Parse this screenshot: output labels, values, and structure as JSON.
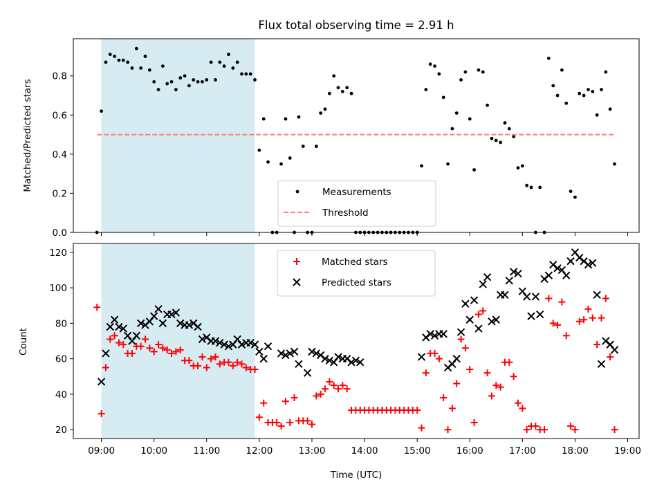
{
  "chart_data": [
    {
      "type": "scatter",
      "title": "Flux total observing time = 2.91 h",
      "xlabel": "",
      "ylabel": "Matched/Predicted stars",
      "xlim": [
        "08:28",
        "19:13"
      ],
      "ylim": [
        0,
        0.99
      ],
      "xticks": [
        "09:00",
        "10:00",
        "11:00",
        "12:00",
        "13:00",
        "14:00",
        "15:00",
        "16:00",
        "17:00",
        "18:00",
        "19:00"
      ],
      "xtick_labels_shown": false,
      "yticks": [
        "0.0",
        "0.2",
        "0.4",
        "0.6",
        "0.8"
      ],
      "highlight_span": {
        "from": "09:00",
        "to": "11:55",
        "color": "#add8e6"
      },
      "legend": {
        "placement": "lower center",
        "entries": [
          "Measurements",
          "Threshold"
        ]
      },
      "series": [
        {
          "name": "Measurements",
          "marker": "dot",
          "color": "#000000",
          "x": [
            "08:55",
            "09:00",
            "09:05",
            "09:10",
            "09:15",
            "09:20",
            "09:25",
            "09:30",
            "09:35",
            "09:40",
            "09:45",
            "09:50",
            "09:55",
            "10:00",
            "10:05",
            "10:10",
            "10:15",
            "10:20",
            "10:25",
            "10:30",
            "10:35",
            "10:40",
            "10:45",
            "10:50",
            "10:55",
            "11:00",
            "11:05",
            "11:10",
            "11:15",
            "11:20",
            "11:25",
            "11:30",
            "11:35",
            "11:40",
            "11:45",
            "11:50",
            "11:55",
            "12:00",
            "12:05",
            "12:10",
            "12:15",
            "12:20",
            "12:25",
            "12:30",
            "12:35",
            "12:40",
            "12:45",
            "12:50",
            "12:55",
            "13:00",
            "13:05",
            "13:10",
            "13:15",
            "13:20",
            "13:25",
            "13:30",
            "13:35",
            "13:40",
            "13:45",
            "13:50",
            "13:55",
            "14:00",
            "14:05",
            "14:10",
            "14:15",
            "14:20",
            "14:25",
            "14:30",
            "14:35",
            "14:40",
            "14:45",
            "14:50",
            "14:55",
            "15:00",
            "15:05",
            "15:10",
            "15:15",
            "15:20",
            "15:25",
            "15:30",
            "15:35",
            "15:40",
            "15:45",
            "15:50",
            "15:55",
            "16:00",
            "16:05",
            "16:10",
            "16:15",
            "16:20",
            "16:25",
            "16:30",
            "16:35",
            "16:40",
            "16:45",
            "16:50",
            "16:55",
            "17:00",
            "17:05",
            "17:10",
            "17:15",
            "17:20",
            "17:25",
            "17:30",
            "17:35",
            "17:40",
            "17:45",
            "17:50",
            "17:55",
            "18:00",
            "18:05",
            "18:10",
            "18:15",
            "18:20",
            "18:25",
            "18:30",
            "18:35",
            "18:40",
            "18:45"
          ],
          "y": [
            0.0,
            0.62,
            0.87,
            0.91,
            0.9,
            0.88,
            0.88,
            0.87,
            0.84,
            0.94,
            0.84,
            0.9,
            0.83,
            0.77,
            0.73,
            0.85,
            0.76,
            0.77,
            0.73,
            0.79,
            0.8,
            0.75,
            0.78,
            0.77,
            0.77,
            0.78,
            0.87,
            0.78,
            0.87,
            0.85,
            0.91,
            0.84,
            0.87,
            0.81,
            0.81,
            0.81,
            0.78,
            0.42,
            0.58,
            0.36,
            0.0,
            0.0,
            0.35,
            0.58,
            0.38,
            0.0,
            0.59,
            0.44,
            0.0,
            0.0,
            0.44,
            0.61,
            0.63,
            0.71,
            0.8,
            0.74,
            0.72,
            0.74,
            0.71,
            0.0,
            0.0,
            0.0,
            0.0,
            0.0,
            0.0,
            0.0,
            0.0,
            0.0,
            0.0,
            0.0,
            0.0,
            0.0,
            0.0,
            0.0,
            0.34,
            0.73,
            0.86,
            0.85,
            0.81,
            0.69,
            0.35,
            0.53,
            0.61,
            0.78,
            0.82,
            0.58,
            0.32,
            0.83,
            0.82,
            0.65,
            0.48,
            0.47,
            0.46,
            0.56,
            0.53,
            0.49,
            0.33,
            0.34,
            0.24,
            0.23,
            0.0,
            0.23,
            0.0,
            0.89,
            0.75,
            0.7,
            0.83,
            0.66,
            0.21,
            0.18,
            0.71,
            0.7,
            0.73,
            0.72,
            0.6,
            0.73,
            0.82,
            0.63,
            0.35
          ]
        },
        {
          "name": "Threshold",
          "style": "dashed",
          "color": "#ff7f7f",
          "x": [
            "08:55",
            "18:45"
          ],
          "y": [
            0.5,
            0.5
          ]
        }
      ]
    },
    {
      "type": "scatter",
      "title": "",
      "xlabel": "Time (UTC)",
      "ylabel": "Count",
      "xlim": [
        "08:28",
        "19:13"
      ],
      "ylim": [
        15,
        125
      ],
      "xticks": [
        "09:00",
        "10:00",
        "11:00",
        "12:00",
        "13:00",
        "14:00",
        "15:00",
        "16:00",
        "17:00",
        "18:00",
        "19:00"
      ],
      "yticks": [
        "20",
        "40",
        "60",
        "80",
        "100",
        "120"
      ],
      "highlight_span": {
        "from": "09:00",
        "to": "11:55",
        "color": "#add8e6"
      },
      "legend": {
        "placement": "upper center",
        "entries": [
          "Matched stars",
          "Predicted stars"
        ]
      },
      "series": [
        {
          "name": "Matched stars",
          "marker": "plus",
          "color": "#ff0000",
          "x": [
            "08:55",
            "09:00",
            "09:05",
            "09:10",
            "09:15",
            "09:20",
            "09:25",
            "09:30",
            "09:35",
            "09:40",
            "09:45",
            "09:50",
            "09:55",
            "10:00",
            "10:05",
            "10:10",
            "10:15",
            "10:20",
            "10:25",
            "10:30",
            "10:35",
            "10:40",
            "10:45",
            "10:50",
            "10:55",
            "11:00",
            "11:05",
            "11:10",
            "11:15",
            "11:20",
            "11:25",
            "11:30",
            "11:35",
            "11:40",
            "11:45",
            "11:50",
            "11:55",
            "12:00",
            "12:05",
            "12:10",
            "12:15",
            "12:20",
            "12:25",
            "12:30",
            "12:35",
            "12:40",
            "12:45",
            "12:50",
            "12:55",
            "13:00",
            "13:05",
            "13:10",
            "13:15",
            "13:20",
            "13:25",
            "13:30",
            "13:35",
            "13:40",
            "13:45",
            "13:50",
            "13:55",
            "14:00",
            "14:05",
            "14:10",
            "14:15",
            "14:20",
            "14:25",
            "14:30",
            "14:35",
            "14:40",
            "14:45",
            "14:50",
            "14:55",
            "15:00",
            "15:05",
            "15:10",
            "15:15",
            "15:20",
            "15:25",
            "15:30",
            "15:35",
            "15:40",
            "15:45",
            "15:50",
            "15:55",
            "16:00",
            "16:05",
            "16:10",
            "16:15",
            "16:20",
            "16:25",
            "16:30",
            "16:35",
            "16:40",
            "16:45",
            "16:50",
            "16:55",
            "17:00",
            "17:05",
            "17:10",
            "17:15",
            "17:20",
            "17:25",
            "17:30",
            "17:35",
            "17:40",
            "17:45",
            "17:50",
            "17:55",
            "18:00",
            "18:05",
            "18:10",
            "18:15",
            "18:20",
            "18:25",
            "18:30",
            "18:35",
            "18:40",
            "18:45"
          ],
          "y": [
            89,
            29,
            55,
            71,
            73,
            69,
            68,
            63,
            63,
            67,
            67,
            71,
            66,
            64,
            68,
            66,
            65,
            63,
            64,
            65,
            59,
            59,
            56,
            56,
            61,
            55,
            60,
            61,
            57,
            58,
            58,
            56,
            58,
            57,
            55,
            54,
            54,
            27,
            35,
            24,
            24,
            24,
            22,
            36,
            24,
            38,
            25,
            25,
            25,
            23,
            39,
            40,
            43,
            47,
            45,
            43,
            45,
            43,
            31,
            31,
            31,
            31,
            31,
            31,
            31,
            31,
            31,
            31,
            31,
            31,
            31,
            31,
            31,
            31,
            21,
            52,
            63,
            63,
            60,
            38,
            20,
            32,
            46,
            71,
            66,
            54,
            24,
            85,
            87,
            52,
            39,
            45,
            44,
            58,
            58,
            50,
            35,
            32,
            20,
            22,
            22,
            20,
            20,
            94,
            80,
            79,
            92,
            73,
            22,
            20,
            81,
            82,
            88,
            83,
            68,
            83,
            94,
            61,
            20
          ]
        },
        {
          "name": "Predicted stars",
          "marker": "x",
          "color": "#000000",
          "x": [
            "09:00",
            "09:05",
            "09:10",
            "09:15",
            "09:20",
            "09:25",
            "09:30",
            "09:35",
            "09:40",
            "09:45",
            "09:50",
            "09:55",
            "10:00",
            "10:05",
            "10:10",
            "10:15",
            "10:20",
            "10:25",
            "10:30",
            "10:35",
            "10:40",
            "10:45",
            "10:50",
            "10:55",
            "11:00",
            "11:05",
            "11:10",
            "11:15",
            "11:20",
            "11:25",
            "11:30",
            "11:35",
            "11:40",
            "11:45",
            "11:50",
            "11:55",
            "12:00",
            "12:05",
            "12:10",
            "12:25",
            "12:30",
            "12:35",
            "12:40",
            "12:45",
            "12:55",
            "13:00",
            "13:05",
            "13:10",
            "13:15",
            "13:20",
            "13:25",
            "13:30",
            "13:35",
            "13:40",
            "13:45",
            "13:50",
            "13:55",
            "15:05",
            "15:10",
            "15:15",
            "15:20",
            "15:25",
            "15:30",
            "15:35",
            "15:40",
            "15:45",
            "15:50",
            "15:55",
            "16:00",
            "16:05",
            "16:10",
            "16:15",
            "16:20",
            "16:25",
            "16:30",
            "16:35",
            "16:40",
            "16:45",
            "16:50",
            "16:55",
            "17:00",
            "17:05",
            "17:10",
            "17:15",
            "17:20",
            "17:25",
            "17:30",
            "17:35",
            "17:40",
            "17:45",
            "17:50",
            "17:55",
            "18:00",
            "18:05",
            "18:10",
            "18:15",
            "18:20",
            "18:25",
            "18:30",
            "18:35",
            "18:40",
            "18:45"
          ],
          "y": [
            47,
            63,
            78,
            82,
            78,
            77,
            73,
            70,
            73,
            80,
            79,
            81,
            84,
            88,
            80,
            85,
            85,
            86,
            80,
            79,
            79,
            80,
            78,
            71,
            72,
            70,
            70,
            69,
            68,
            67,
            68,
            71,
            68,
            69,
            69,
            68,
            64,
            60,
            67,
            63,
            62,
            63,
            64,
            57,
            52,
            64,
            63,
            62,
            60,
            59,
            58,
            61,
            60,
            60,
            58,
            59,
            58,
            61,
            72,
            74,
            73,
            74,
            74,
            55,
            57,
            60,
            75,
            91,
            82,
            93,
            77,
            102,
            106,
            81,
            82,
            96,
            96,
            104,
            109,
            108,
            98,
            95,
            84,
            95,
            85,
            105,
            107,
            113,
            111,
            110,
            107,
            115,
            120,
            117,
            115,
            113,
            114,
            96,
            57,
            70,
            68,
            65
          ]
        }
      ]
    }
  ]
}
